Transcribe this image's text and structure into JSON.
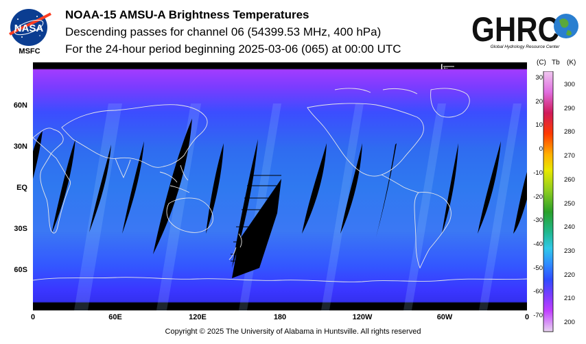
{
  "header": {
    "title": "NOAA-15 AMSU-A Brightness Temperatures",
    "subtitle1": "Descending passes for channel 06 (54399.53 MHz, 400 hPa)",
    "subtitle2": "For the 24-hour period beginning 2025-03-06 (065) at 00:00 UTC"
  },
  "logos": {
    "nasa_text": "NASA",
    "msfc_text": "MSFC",
    "ghrc_text": "GHRC",
    "ghrc_subtitle": "Global Hydrology Resource Center"
  },
  "map": {
    "lat_labels": [
      "60N",
      "30N",
      "EQ",
      "30S",
      "60S"
    ],
    "lon_labels": [
      "0",
      "60E",
      "120E",
      "180",
      "120W",
      "60W",
      "0"
    ],
    "arrow_glyph": "I←",
    "colors": {
      "ocean": "#2f5cff",
      "high_lat": "#9b38ff",
      "missing": "#000000",
      "coast": "#e6e6e6"
    }
  },
  "colorbar": {
    "unit_c": "(C)",
    "label_tb": "Tb",
    "unit_k": "(K)",
    "celsius_ticks": [
      "30",
      "20",
      "10",
      "0",
      "-10",
      "-20",
      "-30",
      "-40",
      "-50",
      "-60",
      "-70"
    ],
    "kelvin_ticks": [
      "300",
      "290",
      "280",
      "270",
      "260",
      "250",
      "240",
      "230",
      "220",
      "210",
      "200"
    ],
    "range_k": [
      195,
      305
    ]
  },
  "footer": {
    "copyright": "Copyright © 2025 The University of Alabama in Huntsville.  All rights reserved"
  }
}
